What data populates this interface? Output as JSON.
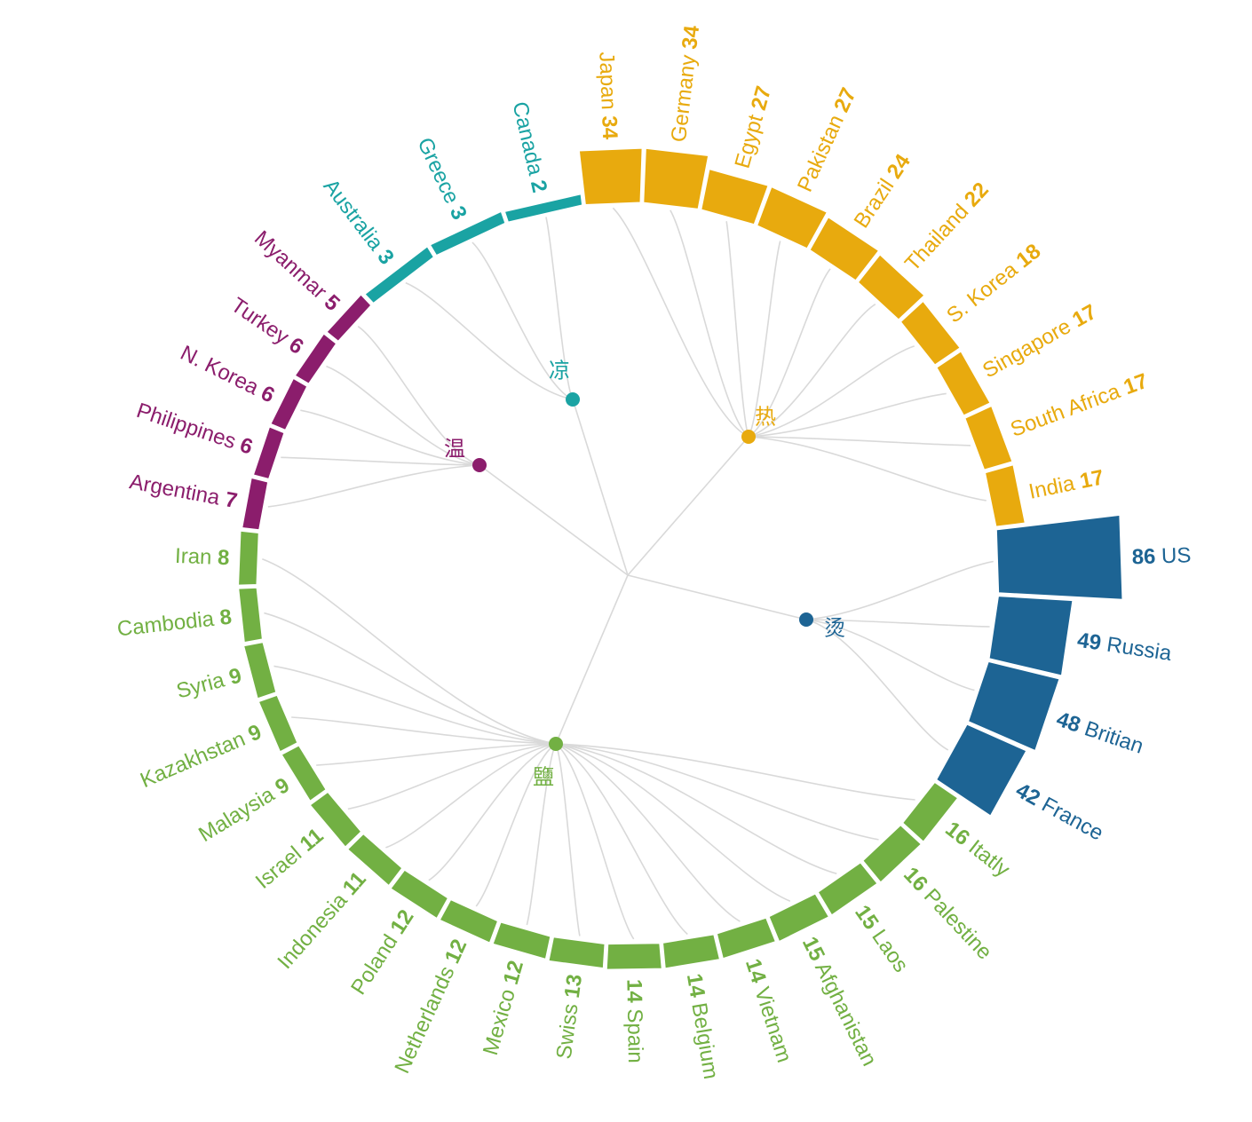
{
  "chart_data": {
    "type": "radial_dendrogram_bar",
    "groups": [
      {
        "id": "blue",
        "label": "烫",
        "color": "#1d6494",
        "items": [
          {
            "name": "US",
            "value": 86
          },
          {
            "name": "Russia",
            "value": 49
          },
          {
            "name": "Britian",
            "value": 48
          },
          {
            "name": "France",
            "value": 42
          }
        ]
      },
      {
        "id": "green",
        "label": "鹽",
        "color": "#72b043",
        "items": [
          {
            "name": "Itatly",
            "value": 16
          },
          {
            "name": "Palestine",
            "value": 16
          },
          {
            "name": "Laos",
            "value": 15
          },
          {
            "name": "Afghanistan",
            "value": 15
          },
          {
            "name": "Vietnam",
            "value": 14
          },
          {
            "name": "Belgium",
            "value": 14
          },
          {
            "name": "Spain",
            "value": 14
          },
          {
            "name": "Swiss",
            "value": 13
          },
          {
            "name": "Mexico",
            "value": 12
          },
          {
            "name": "Netherlands",
            "value": 12
          },
          {
            "name": "Poland",
            "value": 12
          },
          {
            "name": "Indonesia",
            "value": 11
          },
          {
            "name": "Israel",
            "value": 11
          },
          {
            "name": "Malaysia",
            "value": 9
          },
          {
            "name": "Kazakhstan",
            "value": 9
          },
          {
            "name": "Syria",
            "value": 9
          },
          {
            "name": "Cambodia",
            "value": 8
          },
          {
            "name": "Iran",
            "value": 8
          }
        ]
      },
      {
        "id": "purple",
        "label": "温",
        "color": "#8b1d6c",
        "items": [
          {
            "name": "Argentina",
            "value": 7
          },
          {
            "name": "Philippines",
            "value": 6
          },
          {
            "name": "N. Korea",
            "value": 6
          },
          {
            "name": "Turkey",
            "value": 6
          },
          {
            "name": "Myanmar",
            "value": 5
          }
        ]
      },
      {
        "id": "teal",
        "label": "凉",
        "color": "#1aa3a3",
        "items": [
          {
            "name": "Australia",
            "value": 3
          },
          {
            "name": "Greece",
            "value": 3
          },
          {
            "name": "Canada",
            "value": 2
          }
        ]
      },
      {
        "id": "orange",
        "label": "热",
        "color": "#e8aa0e",
        "items": [
          {
            "name": "Japan",
            "value": 34
          },
          {
            "name": "Germany",
            "value": 34
          },
          {
            "name": "Egypt",
            "value": 27
          },
          {
            "name": "Pakistan",
            "value": 27
          },
          {
            "name": "Brazil",
            "value": 24
          },
          {
            "name": "Thailand",
            "value": 22
          },
          {
            "name": "S. Korea",
            "value": 18
          },
          {
            "name": "Singapore",
            "value": 17
          },
          {
            "name": "South Africa",
            "value": 17
          },
          {
            "name": "India",
            "value": 17
          }
        ]
      }
    ],
    "max_value": 86
  }
}
